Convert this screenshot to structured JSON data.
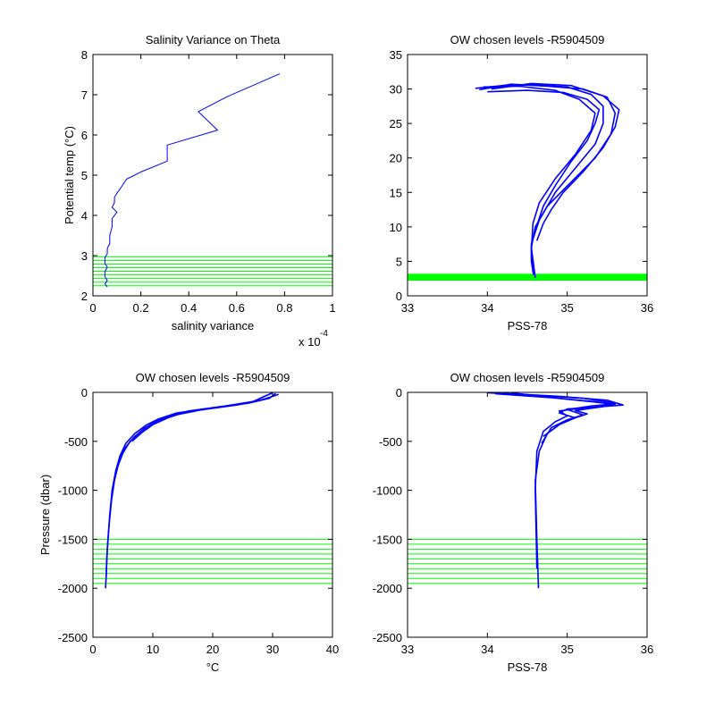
{
  "colors": {
    "profile": "#0000ff",
    "levels": "#00ff00",
    "axes": "#000000",
    "background": "#ffffff"
  },
  "chart_data": [
    {
      "id": "p1",
      "type": "line",
      "title": "Salinity Variance on Theta",
      "xlabel": "salinity variance",
      "ylabel": "Potential temp (°C)",
      "x_exponent_label": "x 10",
      "x_exponent_power": "-4",
      "xlim": [
        0,
        1
      ],
      "ylim": [
        2,
        8
      ],
      "xticks": [
        0,
        0.2,
        0.4,
        0.6,
        0.8,
        1
      ],
      "xtick_labels": [
        "0",
        "0.2",
        "0.4",
        "0.6",
        "0.8",
        "1"
      ],
      "yticks": [
        2,
        3,
        4,
        5,
        6,
        7,
        8
      ],
      "ytick_labels": [
        "2",
        "3",
        "4",
        "5",
        "6",
        "7",
        "8"
      ],
      "grid": false,
      "series": [
        {
          "x": [
            0.78,
            0.56,
            0.44,
            0.52,
            0.31,
            0.31,
            0.2,
            0.14,
            0.12,
            0.1,
            0.09,
            0.09,
            0.08,
            0.1,
            0.08,
            0.08,
            0.07,
            0.07,
            0.06,
            0.06,
            0.05,
            0.05,
            0.06,
            0.05,
            0.05,
            0.06,
            0.05,
            0.06
          ],
          "y": [
            7.52,
            6.95,
            6.58,
            6.12,
            5.75,
            5.35,
            5.08,
            4.9,
            4.72,
            4.55,
            4.45,
            4.32,
            4.2,
            4.08,
            3.92,
            3.72,
            3.5,
            3.3,
            3.18,
            3.05,
            2.95,
            2.8,
            2.72,
            2.6,
            2.48,
            2.38,
            2.3,
            2.22
          ]
        }
      ],
      "level_lines": [
        2.25,
        2.34,
        2.43,
        2.52,
        2.61,
        2.7,
        2.79,
        2.88,
        2.97
      ]
    },
    {
      "id": "p2",
      "type": "line",
      "title": "OW chosen levels -R5904509",
      "xlabel": "PSS-78",
      "ylabel": "",
      "xlim": [
        33,
        36
      ],
      "ylim": [
        0,
        35
      ],
      "xticks": [
        33,
        34,
        35,
        36
      ],
      "xtick_labels": [
        "33",
        "34",
        "35",
        "36"
      ],
      "yticks": [
        0,
        5,
        10,
        15,
        20,
        25,
        30,
        35
      ],
      "ytick_labels": [
        "0",
        "5",
        "10",
        "15",
        "20",
        "25",
        "30",
        "35"
      ],
      "grid": false,
      "series": [
        {
          "x": [
            33.85,
            34.2,
            34.6,
            35.0,
            35.3,
            35.45,
            35.45,
            35.35,
            35.1,
            34.85,
            34.65,
            34.55,
            34.55,
            34.58
          ],
          "y": [
            30.1,
            30.5,
            30.6,
            30.3,
            29.2,
            27.5,
            25.0,
            22.0,
            18.5,
            15.0,
            11.0,
            7.5,
            5.0,
            3.0
          ]
        },
        {
          "x": [
            33.9,
            34.3,
            34.75,
            35.2,
            35.5,
            35.6,
            35.55,
            35.35,
            35.05,
            34.75,
            34.6,
            34.55,
            34.58,
            34.6
          ],
          "y": [
            29.9,
            30.7,
            30.4,
            30.0,
            28.8,
            26.5,
            23.5,
            20.0,
            16.5,
            13.0,
            10.0,
            7.0,
            4.5,
            2.6
          ]
        },
        {
          "x": [
            33.95,
            34.4,
            34.85,
            35.15,
            35.35,
            35.3,
            35.1,
            34.85,
            34.65,
            34.57,
            34.55,
            34.57
          ],
          "y": [
            30.3,
            30.4,
            29.8,
            28.5,
            26.5,
            24.0,
            20.5,
            17.0,
            13.5,
            10.5,
            6.5,
            3.4
          ]
        },
        {
          "x": [
            34.05,
            34.55,
            35.05,
            35.45,
            35.65,
            35.6,
            35.45,
            35.2,
            34.95,
            34.8,
            34.7,
            34.62
          ],
          "y": [
            30.0,
            30.8,
            30.5,
            29.0,
            27.0,
            24.5,
            21.5,
            18.0,
            15.0,
            12.5,
            10.5,
            8.0
          ]
        },
        {
          "x": [
            34.0,
            34.5,
            34.95,
            35.25,
            35.4,
            35.35,
            35.25,
            35.05,
            34.85,
            34.7,
            34.6
          ],
          "y": [
            29.6,
            29.8,
            29.5,
            28.5,
            27.0,
            25.0,
            22.5,
            19.5,
            16.0,
            13.0,
            9.5
          ]
        }
      ],
      "level_band": [
        2.2,
        3.2
      ]
    },
    {
      "id": "p3",
      "type": "line",
      "title": "OW chosen levels -R5904509",
      "xlabel": "°C",
      "ylabel": "Pressure (dbar)",
      "xlim": [
        0,
        40
      ],
      "ylim": [
        -2500,
        0
      ],
      "xticks": [
        0,
        10,
        20,
        30,
        40
      ],
      "xtick_labels": [
        "0",
        "10",
        "20",
        "30",
        "40"
      ],
      "yticks": [
        -2500,
        -2000,
        -1500,
        -1000,
        -500,
        0
      ],
      "ytick_labels": [
        "-2500",
        "-2000",
        "-1500",
        "-1000",
        "-500",
        "0"
      ],
      "grid": false,
      "series": [
        {
          "x": [
            30.5,
            29.5,
            26.0,
            20.0,
            14.0,
            11.0,
            9.0,
            7.0,
            5.5,
            4.5,
            3.8,
            3.2,
            2.8,
            2.5,
            2.3,
            2.2,
            2.1
          ],
          "y": [
            -10,
            -60,
            -110,
            -160,
            -210,
            -270,
            -330,
            -420,
            -520,
            -650,
            -800,
            -1000,
            -1250,
            -1500,
            -1700,
            -1900,
            -2000
          ]
        },
        {
          "x": [
            31.0,
            28.0,
            24.0,
            18.0,
            13.0,
            10.5,
            8.5,
            6.8,
            5.2,
            4.3,
            3.6,
            3.1,
            2.7,
            2.4,
            2.2
          ],
          "y": [
            -20,
            -80,
            -130,
            -180,
            -240,
            -300,
            -370,
            -460,
            -580,
            -720,
            -900,
            -1100,
            -1350,
            -1600,
            -1900
          ]
        },
        {
          "x": [
            29.0,
            27.0,
            22.0,
            16.0,
            12.0,
            9.8,
            8.0,
            6.2,
            5.0,
            4.0
          ],
          "y": [
            -30,
            -90,
            -140,
            -190,
            -250,
            -320,
            -400,
            -500,
            -620,
            -780
          ]
        },
        {
          "x": [
            30.0,
            26.5,
            21.0,
            15.5,
            12.5,
            10.0,
            8.2,
            6.5
          ],
          "y": [
            -5,
            -100,
            -150,
            -200,
            -260,
            -330,
            -410,
            -500
          ]
        }
      ],
      "level_lines": [
        -1500,
        -1550,
        -1600,
        -1650,
        -1700,
        -1750,
        -1800,
        -1850,
        -1900,
        -1950
      ]
    },
    {
      "id": "p4",
      "type": "line",
      "title": "OW chosen levels -R5904509",
      "xlabel": "PSS-78",
      "ylabel": "",
      "xlim": [
        33,
        36
      ],
      "ylim": [
        -2500,
        0
      ],
      "xticks": [
        33,
        34,
        35,
        36
      ],
      "xtick_labels": [
        "33",
        "34",
        "35",
        "36"
      ],
      "yticks": [
        -2500,
        -2000,
        -1500,
        -1000,
        -500,
        0
      ],
      "ytick_labels": [
        "-2500",
        "-2000",
        "-1500",
        "-1000",
        "-500",
        "0"
      ],
      "grid": false,
      "series": [
        {
          "x": [
            34.0,
            34.6,
            35.2,
            35.6,
            35.4,
            35.0,
            34.9,
            35.1,
            34.9,
            34.75,
            34.65,
            34.6,
            34.62,
            34.64
          ],
          "y": [
            -5,
            -30,
            -60,
            -110,
            -150,
            -170,
            -210,
            -260,
            -330,
            -420,
            -600,
            -900,
            -1500,
            -2000
          ]
        },
        {
          "x": [
            34.2,
            34.9,
            35.5,
            35.7,
            35.2,
            34.9,
            35.0,
            34.85,
            34.7,
            34.62,
            34.6,
            34.62
          ],
          "y": [
            -10,
            -40,
            -80,
            -130,
            -160,
            -190,
            -240,
            -300,
            -400,
            -600,
            -1000,
            -1800
          ]
        },
        {
          "x": [
            34.1,
            34.8,
            35.35,
            35.55,
            35.3,
            35.0,
            35.2,
            35.0,
            34.8,
            34.68
          ],
          "y": [
            -15,
            -55,
            -95,
            -120,
            -140,
            -175,
            -230,
            -280,
            -360,
            -520
          ]
        },
        {
          "x": [
            34.3,
            35.0,
            35.6,
            35.45,
            35.1,
            35.25,
            34.95,
            34.7
          ],
          "y": [
            -5,
            -70,
            -120,
            -145,
            -185,
            -220,
            -300,
            -450
          ]
        }
      ],
      "level_lines": [
        -1500,
        -1550,
        -1600,
        -1650,
        -1700,
        -1750,
        -1800,
        -1850,
        -1900,
        -1950
      ]
    }
  ]
}
